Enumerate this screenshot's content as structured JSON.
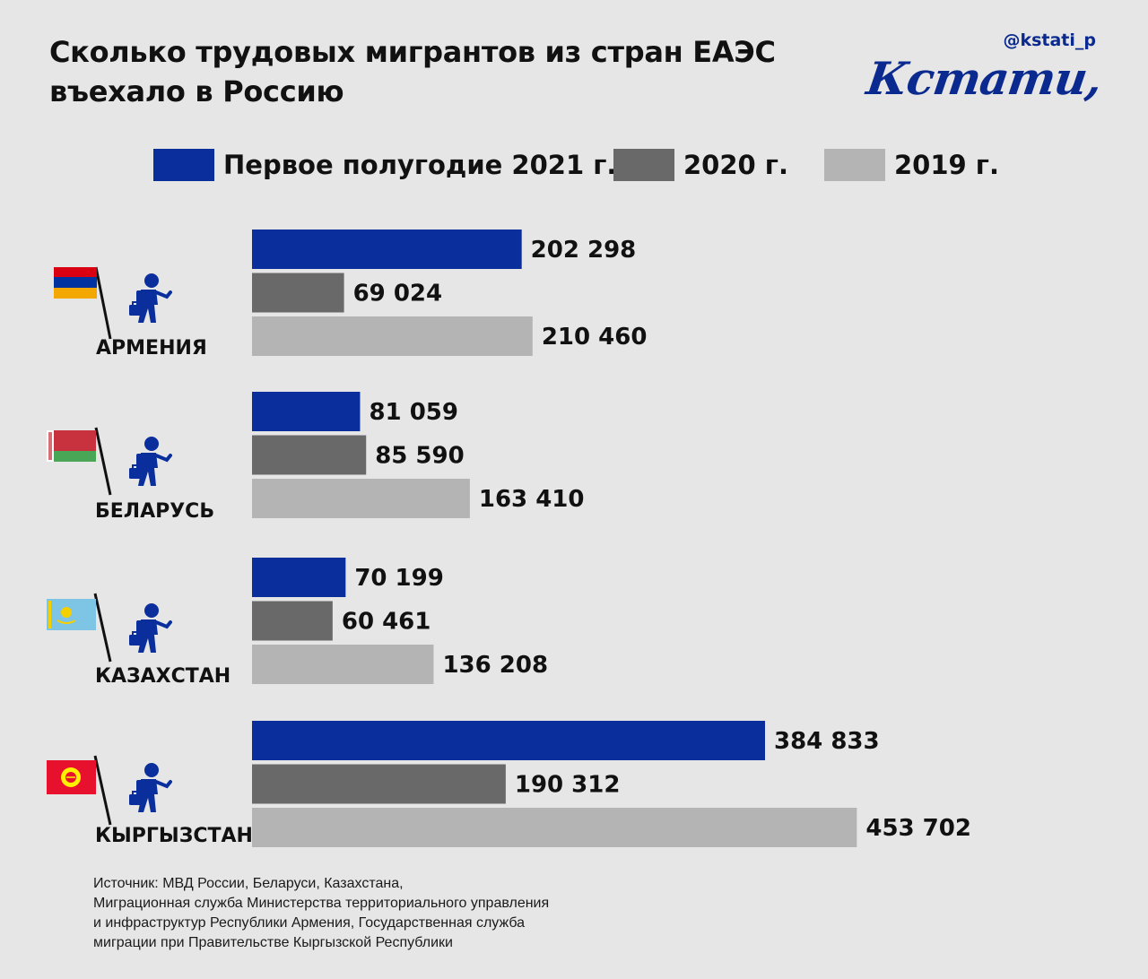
{
  "title_lines": [
    "Сколько трудовых мигрантов из стран ЕАЭС",
    "въехало в Россию"
  ],
  "handle": "@kstati_p",
  "brand": "Кстати,",
  "source_lines": [
    "Источник: МВД России, Беларуси, Казахстана,",
    "Миграционная служба Министерства территориального управления",
    "и инфраструктур Республики Армения, Государственная служба",
    "миграции при Правительстве Кыргызской Республики"
  ],
  "colors": {
    "s2021": "#0a2f9c",
    "s2020": "#696969",
    "s2019": "#b4b4b4",
    "brand": "#0a2a8f"
  },
  "icons": [
    "flag-icon",
    "migrant-worker-icon"
  ],
  "chart_data": {
    "type": "bar",
    "orientation": "horizontal",
    "categories": [
      "АРМЕНИЯ",
      "БЕЛАРУСЬ",
      "КАЗАХСТАН",
      "КЫРГЫЗСТАН"
    ],
    "series": [
      {
        "name": "Первое полугодие 2021 г.",
        "values": [
          202298,
          81059,
          70199,
          384833
        ],
        "labels": [
          "202 298",
          "81 059",
          "70 199",
          "384 833"
        ],
        "color": "#0a2f9c"
      },
      {
        "name": "2020 г.",
        "values": [
          69024,
          85590,
          60461,
          190312
        ],
        "labels": [
          "69 024",
          "85 590",
          "60 461",
          "190 312"
        ],
        "color": "#696969"
      },
      {
        "name": "2019 г.",
        "values": [
          210460,
          163410,
          136208,
          453702
        ],
        "labels": [
          "210 460",
          "163 410",
          "136 208",
          "453 702"
        ],
        "color": "#b4b4b4"
      }
    ],
    "legend_position": "top",
    "grid": false
  }
}
